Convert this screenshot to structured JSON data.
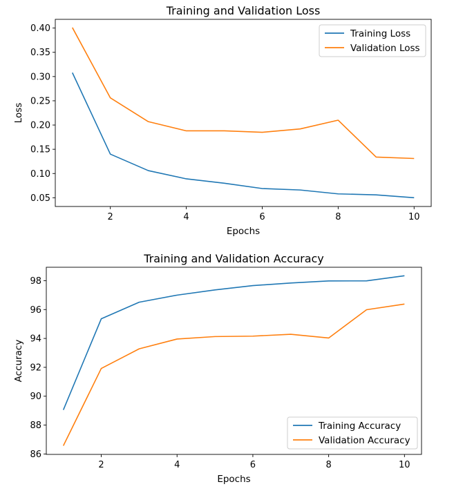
{
  "colors": {
    "training": "#1f77b4",
    "validation": "#ff7f0e"
  },
  "chart_data": [
    {
      "type": "line",
      "title": "Training and Validation Loss",
      "xlabel": "Epochs",
      "ylabel": "Loss",
      "xlim": [
        0.55,
        10.45
      ],
      "ylim": [
        0.032,
        0.418
      ],
      "xticks": [
        2,
        4,
        6,
        8,
        10
      ],
      "yticks": [
        0.05,
        0.1,
        0.15,
        0.2,
        0.25,
        0.3,
        0.35,
        0.4
      ],
      "ytick_labels": [
        "0.05",
        "0.10",
        "0.15",
        "0.20",
        "0.25",
        "0.30",
        "0.35",
        "0.40"
      ],
      "grid": false,
      "legend_position": "top-right",
      "x": [
        1,
        2,
        3,
        4,
        5,
        6,
        7,
        8,
        9,
        10
      ],
      "series": [
        {
          "name": "Training Loss",
          "color": "#1f77b4",
          "values": [
            0.308,
            0.14,
            0.106,
            0.089,
            0.08,
            0.069,
            0.066,
            0.058,
            0.056,
            0.05
          ]
        },
        {
          "name": "Validation Loss",
          "color": "#ff7f0e",
          "values": [
            0.401,
            0.256,
            0.207,
            0.188,
            0.188,
            0.185,
            0.192,
            0.21,
            0.134,
            0.131
          ]
        }
      ]
    },
    {
      "type": "line",
      "title": "Training and Validation Accuracy",
      "xlabel": "Epochs",
      "ylabel": "Accuracy",
      "xlim": [
        0.55,
        10.45
      ],
      "ylim": [
        85.97,
        98.93
      ],
      "xticks": [
        2,
        4,
        6,
        8,
        10
      ],
      "yticks": [
        86,
        88,
        90,
        92,
        94,
        96,
        98
      ],
      "ytick_labels": [
        "86",
        "88",
        "90",
        "92",
        "94",
        "96",
        "98"
      ],
      "grid": false,
      "legend_position": "bottom-right",
      "x": [
        1,
        2,
        3,
        4,
        5,
        6,
        7,
        8,
        9,
        10
      ],
      "series": [
        {
          "name": "Training Accuracy",
          "color": "#1f77b4",
          "values": [
            89.05,
            95.36,
            96.51,
            97.0,
            97.36,
            97.66,
            97.84,
            97.98,
            97.99,
            98.34
          ]
        },
        {
          "name": "Validation Accuracy",
          "color": "#ff7f0e",
          "values": [
            86.57,
            91.92,
            93.28,
            93.96,
            94.13,
            94.16,
            94.29,
            94.03,
            95.99,
            96.38
          ]
        }
      ]
    }
  ]
}
